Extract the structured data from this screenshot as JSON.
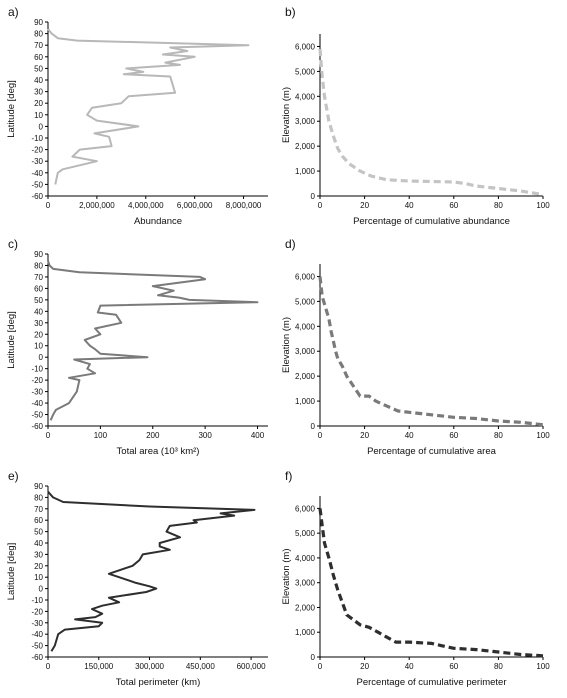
{
  "figure": {
    "panels": [
      {
        "id": "a",
        "panel_label": "a)"
      },
      {
        "id": "b",
        "panel_label": "b)"
      },
      {
        "id": "c",
        "panel_label": "c)"
      },
      {
        "id": "d",
        "panel_label": "d)"
      },
      {
        "id": "e",
        "panel_label": "e)"
      },
      {
        "id": "f",
        "panel_label": "f)"
      }
    ]
  },
  "chart_data": [
    {
      "id": "a",
      "type": "line",
      "xlabel": "Abundance",
      "ylabel": "Latitude [deg]",
      "xlim": [
        0,
        9000000
      ],
      "ylim": [
        -60,
        90
      ],
      "xticks": [
        0,
        2000000,
        4000000,
        6000000,
        8000000
      ],
      "xtick_labels": [
        "0",
        "2,000,000",
        "4,000,000",
        "6,000,000",
        "8,000,000"
      ],
      "yticks": [
        -60,
        -50,
        -40,
        -30,
        -20,
        -10,
        0,
        10,
        20,
        30,
        40,
        50,
        60,
        70,
        80,
        90
      ],
      "ytick_labels": [
        "-60",
        "-50",
        "-40",
        "-30",
        "-20",
        "-10",
        "0",
        "10",
        "20",
        "30",
        "40",
        "50",
        "60",
        "70",
        "80",
        "90"
      ],
      "line_color": "#b8b8b8",
      "dashed": false,
      "series": [
        {
          "x": [
            0,
            150000,
            400000,
            1200000,
            8200000,
            5000000,
            5700000,
            4700000,
            6000000,
            4800000,
            5400000,
            3200000,
            3900000,
            3100000,
            5000000,
            5200000,
            3300000,
            3000000,
            1800000,
            1600000,
            2000000,
            3700000,
            1900000,
            2500000,
            2600000,
            1300000,
            1000000,
            2000000,
            1400000,
            600000,
            400000,
            300000
          ],
          "y": [
            84,
            80,
            76,
            74,
            70,
            68,
            65,
            62,
            60,
            55,
            53,
            50,
            47,
            45,
            43,
            29,
            26,
            20,
            16,
            10,
            5,
            0,
            -6,
            -9,
            -17,
            -20,
            -26,
            -30,
            -33,
            -37,
            -40,
            -50
          ]
        }
      ]
    },
    {
      "id": "b",
      "type": "line",
      "xlabel": "Percentage of cumulative abundance",
      "ylabel": "Elevation (m)",
      "xlim": [
        0,
        100
      ],
      "ylim": [
        0,
        6500
      ],
      "xticks": [
        0,
        20,
        40,
        60,
        80,
        100
      ],
      "xtick_labels": [
        "0",
        "20",
        "40",
        "60",
        "80",
        "100"
      ],
      "yticks": [
        0,
        1000,
        2000,
        3000,
        4000,
        5000,
        6000
      ],
      "ytick_labels": [
        "0",
        "1,000",
        "2,000",
        "3,000",
        "4,000",
        "5,000",
        "6,000"
      ],
      "line_color": "#c4c4c4",
      "dashed": true,
      "series": [
        {
          "x": [
            0,
            1,
            2,
            4,
            6,
            8,
            10,
            13,
            18,
            23,
            30,
            40,
            50,
            60,
            65,
            70,
            80,
            90,
            97,
            100
          ],
          "y": [
            5900,
            4800,
            4000,
            3000,
            2400,
            1900,
            1600,
            1300,
            1000,
            800,
            650,
            600,
            580,
            560,
            500,
            400,
            300,
            200,
            100,
            50
          ]
        }
      ]
    },
    {
      "id": "c",
      "type": "line",
      "xlabel": "Total area (10³ km²)",
      "ylabel": "Latitude [deg]",
      "xlim": [
        0,
        420
      ],
      "ylim": [
        -60,
        90
      ],
      "xticks": [
        0,
        100,
        200,
        300,
        400
      ],
      "xtick_labels": [
        "0",
        "100",
        "200",
        "300",
        "400"
      ],
      "yticks": [
        -60,
        -50,
        -40,
        -30,
        -20,
        -10,
        0,
        10,
        20,
        30,
        40,
        50,
        60,
        70,
        80,
        90
      ],
      "ytick_labels": [
        "-60",
        "-50",
        "-40",
        "-30",
        "-20",
        "-10",
        "0",
        "10",
        "20",
        "30",
        "40",
        "50",
        "60",
        "70",
        "80",
        "90"
      ],
      "line_color": "#7a7a7a",
      "dashed": false,
      "series": [
        {
          "x": [
            0,
            3,
            10,
            60,
            290,
            300,
            200,
            240,
            210,
            250,
            270,
            400,
            100,
            95,
            130,
            140,
            90,
            100,
            70,
            80,
            90,
            100,
            190,
            50,
            80,
            75,
            90,
            40,
            60,
            55,
            40,
            15,
            10,
            5
          ],
          "y": [
            84,
            80,
            77,
            74,
            70,
            68,
            62,
            58,
            54,
            52,
            50,
            48,
            45,
            39,
            37,
            30,
            25,
            20,
            15,
            10,
            7,
            3,
            0,
            -2,
            -6,
            -10,
            -14,
            -18,
            -20,
            -30,
            -40,
            -46,
            -50,
            -55
          ]
        }
      ]
    },
    {
      "id": "d",
      "type": "line",
      "xlabel": "Percentage of cumulative area",
      "ylabel": "Elevation (m)",
      "xlim": [
        0,
        100
      ],
      "ylim": [
        0,
        6500
      ],
      "xticks": [
        0,
        20,
        40,
        60,
        80,
        100
      ],
      "xtick_labels": [
        "0",
        "20",
        "40",
        "60",
        "80",
        "100"
      ],
      "yticks": [
        0,
        1000,
        2000,
        3000,
        4000,
        5000,
        6000
      ],
      "ytick_labels": [
        "0",
        "1,000",
        "2,000",
        "3,000",
        "4,000",
        "5,000",
        "6,000"
      ],
      "line_color": "#7a7a7a",
      "dashed": true,
      "series": [
        {
          "x": [
            0,
            1,
            3,
            4,
            5,
            6,
            7,
            8,
            10,
            12,
            15,
            18,
            22,
            25,
            30,
            35,
            40,
            50,
            60,
            70,
            80,
            90,
            95,
            100
          ],
          "y": [
            6000,
            5200,
            4600,
            4300,
            3800,
            3400,
            3000,
            2700,
            2400,
            2000,
            1600,
            1200,
            1200,
            1000,
            800,
            600,
            550,
            450,
            350,
            300,
            200,
            150,
            100,
            50
          ]
        }
      ]
    },
    {
      "id": "e",
      "type": "line",
      "xlabel": "Total perimeter (km)",
      "ylabel": "Latitude [deg]",
      "xlim": [
        0,
        650000
      ],
      "ylim": [
        -60,
        90
      ],
      "xticks": [
        0,
        150000,
        300000,
        450000,
        600000
      ],
      "xtick_labels": [
        "0",
        "150,000",
        "300,000",
        "450,000",
        "600,000"
      ],
      "yticks": [
        -60,
        -50,
        -40,
        -30,
        -20,
        -10,
        0,
        10,
        20,
        30,
        40,
        50,
        60,
        70,
        80,
        90
      ],
      "ytick_labels": [
        "-60",
        "-50",
        "-40",
        "-30",
        "-20",
        "-10",
        "0",
        "10",
        "20",
        "30",
        "40",
        "50",
        "60",
        "70",
        "80",
        "90"
      ],
      "line_color": "#2e2e2e",
      "dashed": false,
      "series": [
        {
          "x": [
            0,
            15000,
            45000,
            300000,
            610000,
            510000,
            550000,
            430000,
            440000,
            360000,
            350000,
            390000,
            330000,
            330000,
            360000,
            280000,
            270000,
            250000,
            220000,
            180000,
            210000,
            260000,
            300000,
            320000,
            290000,
            180000,
            210000,
            160000,
            130000,
            160000,
            140000,
            80000,
            160000,
            150000,
            50000,
            30000,
            20000,
            10000
          ],
          "y": [
            85,
            80,
            76,
            72,
            69,
            66,
            64,
            60,
            58,
            55,
            50,
            45,
            40,
            37,
            34,
            30,
            25,
            20,
            17,
            13,
            10,
            5,
            2,
            0,
            -3,
            -8,
            -12,
            -15,
            -18,
            -22,
            -25,
            -27,
            -30,
            -33,
            -36,
            -40,
            -50,
            -55
          ]
        }
      ]
    },
    {
      "id": "f",
      "type": "line",
      "xlabel": "Percentage of cumulative perimeter",
      "ylabel": "Elevation (m)",
      "xlim": [
        0,
        100
      ],
      "ylim": [
        0,
        6500
      ],
      "xticks": [
        0,
        20,
        40,
        60,
        80,
        100
      ],
      "xtick_labels": [
        "0",
        "20",
        "40",
        "60",
        "80",
        "100"
      ],
      "yticks": [
        0,
        1000,
        2000,
        3000,
        4000,
        5000,
        6000
      ],
      "ytick_labels": [
        "0",
        "1,000",
        "2,000",
        "3,000",
        "4,000",
        "5,000",
        "6,000"
      ],
      "line_color": "#2e2e2e",
      "dashed": true,
      "series": [
        {
          "x": [
            0,
            1,
            2,
            4,
            6,
            8,
            10,
            12,
            15,
            18,
            22,
            26,
            30,
            34,
            40,
            50,
            55,
            60,
            70,
            80,
            90,
            100
          ],
          "y": [
            6000,
            5300,
            4600,
            4000,
            3300,
            2700,
            2200,
            1700,
            1500,
            1300,
            1200,
            1000,
            800,
            600,
            600,
            550,
            450,
            350,
            300,
            200,
            100,
            50
          ]
        }
      ]
    }
  ]
}
